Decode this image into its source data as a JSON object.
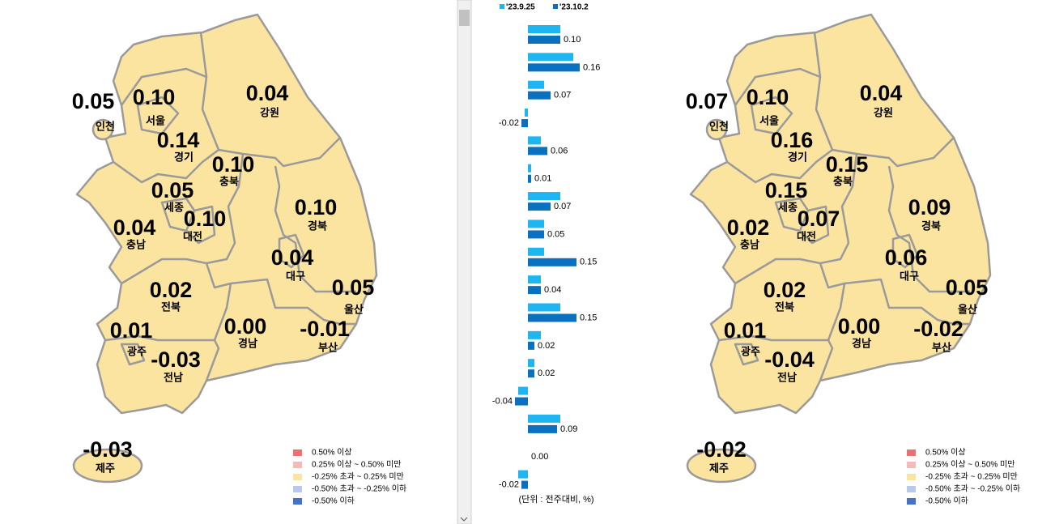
{
  "maps": [
    {
      "regions": [
        {
          "name": "서울",
          "value": "0.10"
        },
        {
          "name": "경기",
          "value": "0.14"
        },
        {
          "name": "인천",
          "value": "0.05"
        },
        {
          "name": "부산",
          "value": "-0.01"
        },
        {
          "name": "대구",
          "value": "0.04"
        },
        {
          "name": "광주",
          "value": "0.01"
        },
        {
          "name": "대전",
          "value": "0.10"
        },
        {
          "name": "울산",
          "value": "0.05"
        },
        {
          "name": "세종",
          "value": "0.05"
        },
        {
          "name": "강원",
          "value": "0.04"
        },
        {
          "name": "충북",
          "value": "0.10"
        },
        {
          "name": "충남",
          "value": "0.04"
        },
        {
          "name": "전북",
          "value": "0.02"
        },
        {
          "name": "전남",
          "value": "-0.03"
        },
        {
          "name": "경북",
          "value": "0.10"
        },
        {
          "name": "경남",
          "value": "0.00"
        },
        {
          "name": "제주",
          "value": "-0.03"
        }
      ],
      "legend": [
        {
          "color": "#e87272",
          "label": "0.50% 이상"
        },
        {
          "color": "#f4b9b9",
          "label": "0.25% 이상 ~ 0.50% 미만"
        },
        {
          "color": "#fbe3a0",
          "label": "-0.25% 초과 ~ 0.25% 미만"
        },
        {
          "color": "#b9c9e9",
          "label": "-0.50% 초과 ~ -0.25% 이하"
        },
        {
          "color": "#4472c4",
          "label": "-0.50% 이하"
        }
      ]
    },
    {
      "regions": [
        {
          "name": "서울",
          "value": "0.10"
        },
        {
          "name": "경기",
          "value": "0.16"
        },
        {
          "name": "인천",
          "value": "0.07"
        },
        {
          "name": "부산",
          "value": "-0.02"
        },
        {
          "name": "대구",
          "value": "0.06"
        },
        {
          "name": "광주",
          "value": "0.01"
        },
        {
          "name": "대전",
          "value": "0.07"
        },
        {
          "name": "울산",
          "value": "0.05"
        },
        {
          "name": "세종",
          "value": "0.15"
        },
        {
          "name": "강원",
          "value": "0.04"
        },
        {
          "name": "충북",
          "value": "0.15"
        },
        {
          "name": "충남",
          "value": "0.02"
        },
        {
          "name": "전북",
          "value": "0.02"
        },
        {
          "name": "전남",
          "value": "-0.04"
        },
        {
          "name": "경북",
          "value": "0.09"
        },
        {
          "name": "경남",
          "value": "0.00"
        },
        {
          "name": "제주",
          "value": "-0.02"
        }
      ],
      "legend": [
        {
          "color": "#e87272",
          "label": "0.50% 이상"
        },
        {
          "color": "#f4b9b9",
          "label": "0.25% 이상 ~ 0.50% 미만"
        },
        {
          "color": "#fbe3a0",
          "label": "-0.25% 초과 ~ 0.25% 미만"
        },
        {
          "color": "#b9c9e9",
          "label": "-0.50% 초과 ~ -0.25% 이하"
        },
        {
          "color": "#4472c4",
          "label": "-0.50% 이하"
        }
      ]
    }
  ],
  "chart_data": {
    "type": "bar",
    "orientation": "horizontal",
    "categories": [
      null,
      null,
      null,
      null,
      null,
      null,
      null,
      null,
      null,
      null,
      null,
      null,
      null,
      null,
      null,
      null,
      null
    ],
    "series": [
      {
        "name": "'23.9.25",
        "color": "#1fb5f0",
        "values": [
          0.1,
          0.14,
          0.05,
          -0.01,
          0.04,
          0.01,
          0.1,
          0.05,
          0.05,
          0.04,
          0.1,
          0.04,
          0.02,
          -0.03,
          0.1,
          0,
          -0.03
        ]
      },
      {
        "name": "'23.10.2",
        "color": "#0a70c0",
        "values": [
          0.1,
          0.16,
          0.07,
          -0.02,
          0.06,
          0.01,
          0.07,
          0.05,
          0.15,
          0.04,
          0.15,
          0.02,
          0.02,
          -0.04,
          0.09,
          0,
          -0.02
        ],
        "value_labels": [
          "0.10",
          "0.16",
          "0.07",
          "-0.02",
          "0.06",
          "0.01",
          "0.07",
          "0.05",
          "0.15",
          "0.04",
          "0.15",
          "0.02",
          "0.02",
          "-0.04",
          "0.09",
          "0.00",
          "-0.02"
        ]
      }
    ],
    "note": "(단위 : 전주대비, %)"
  }
}
